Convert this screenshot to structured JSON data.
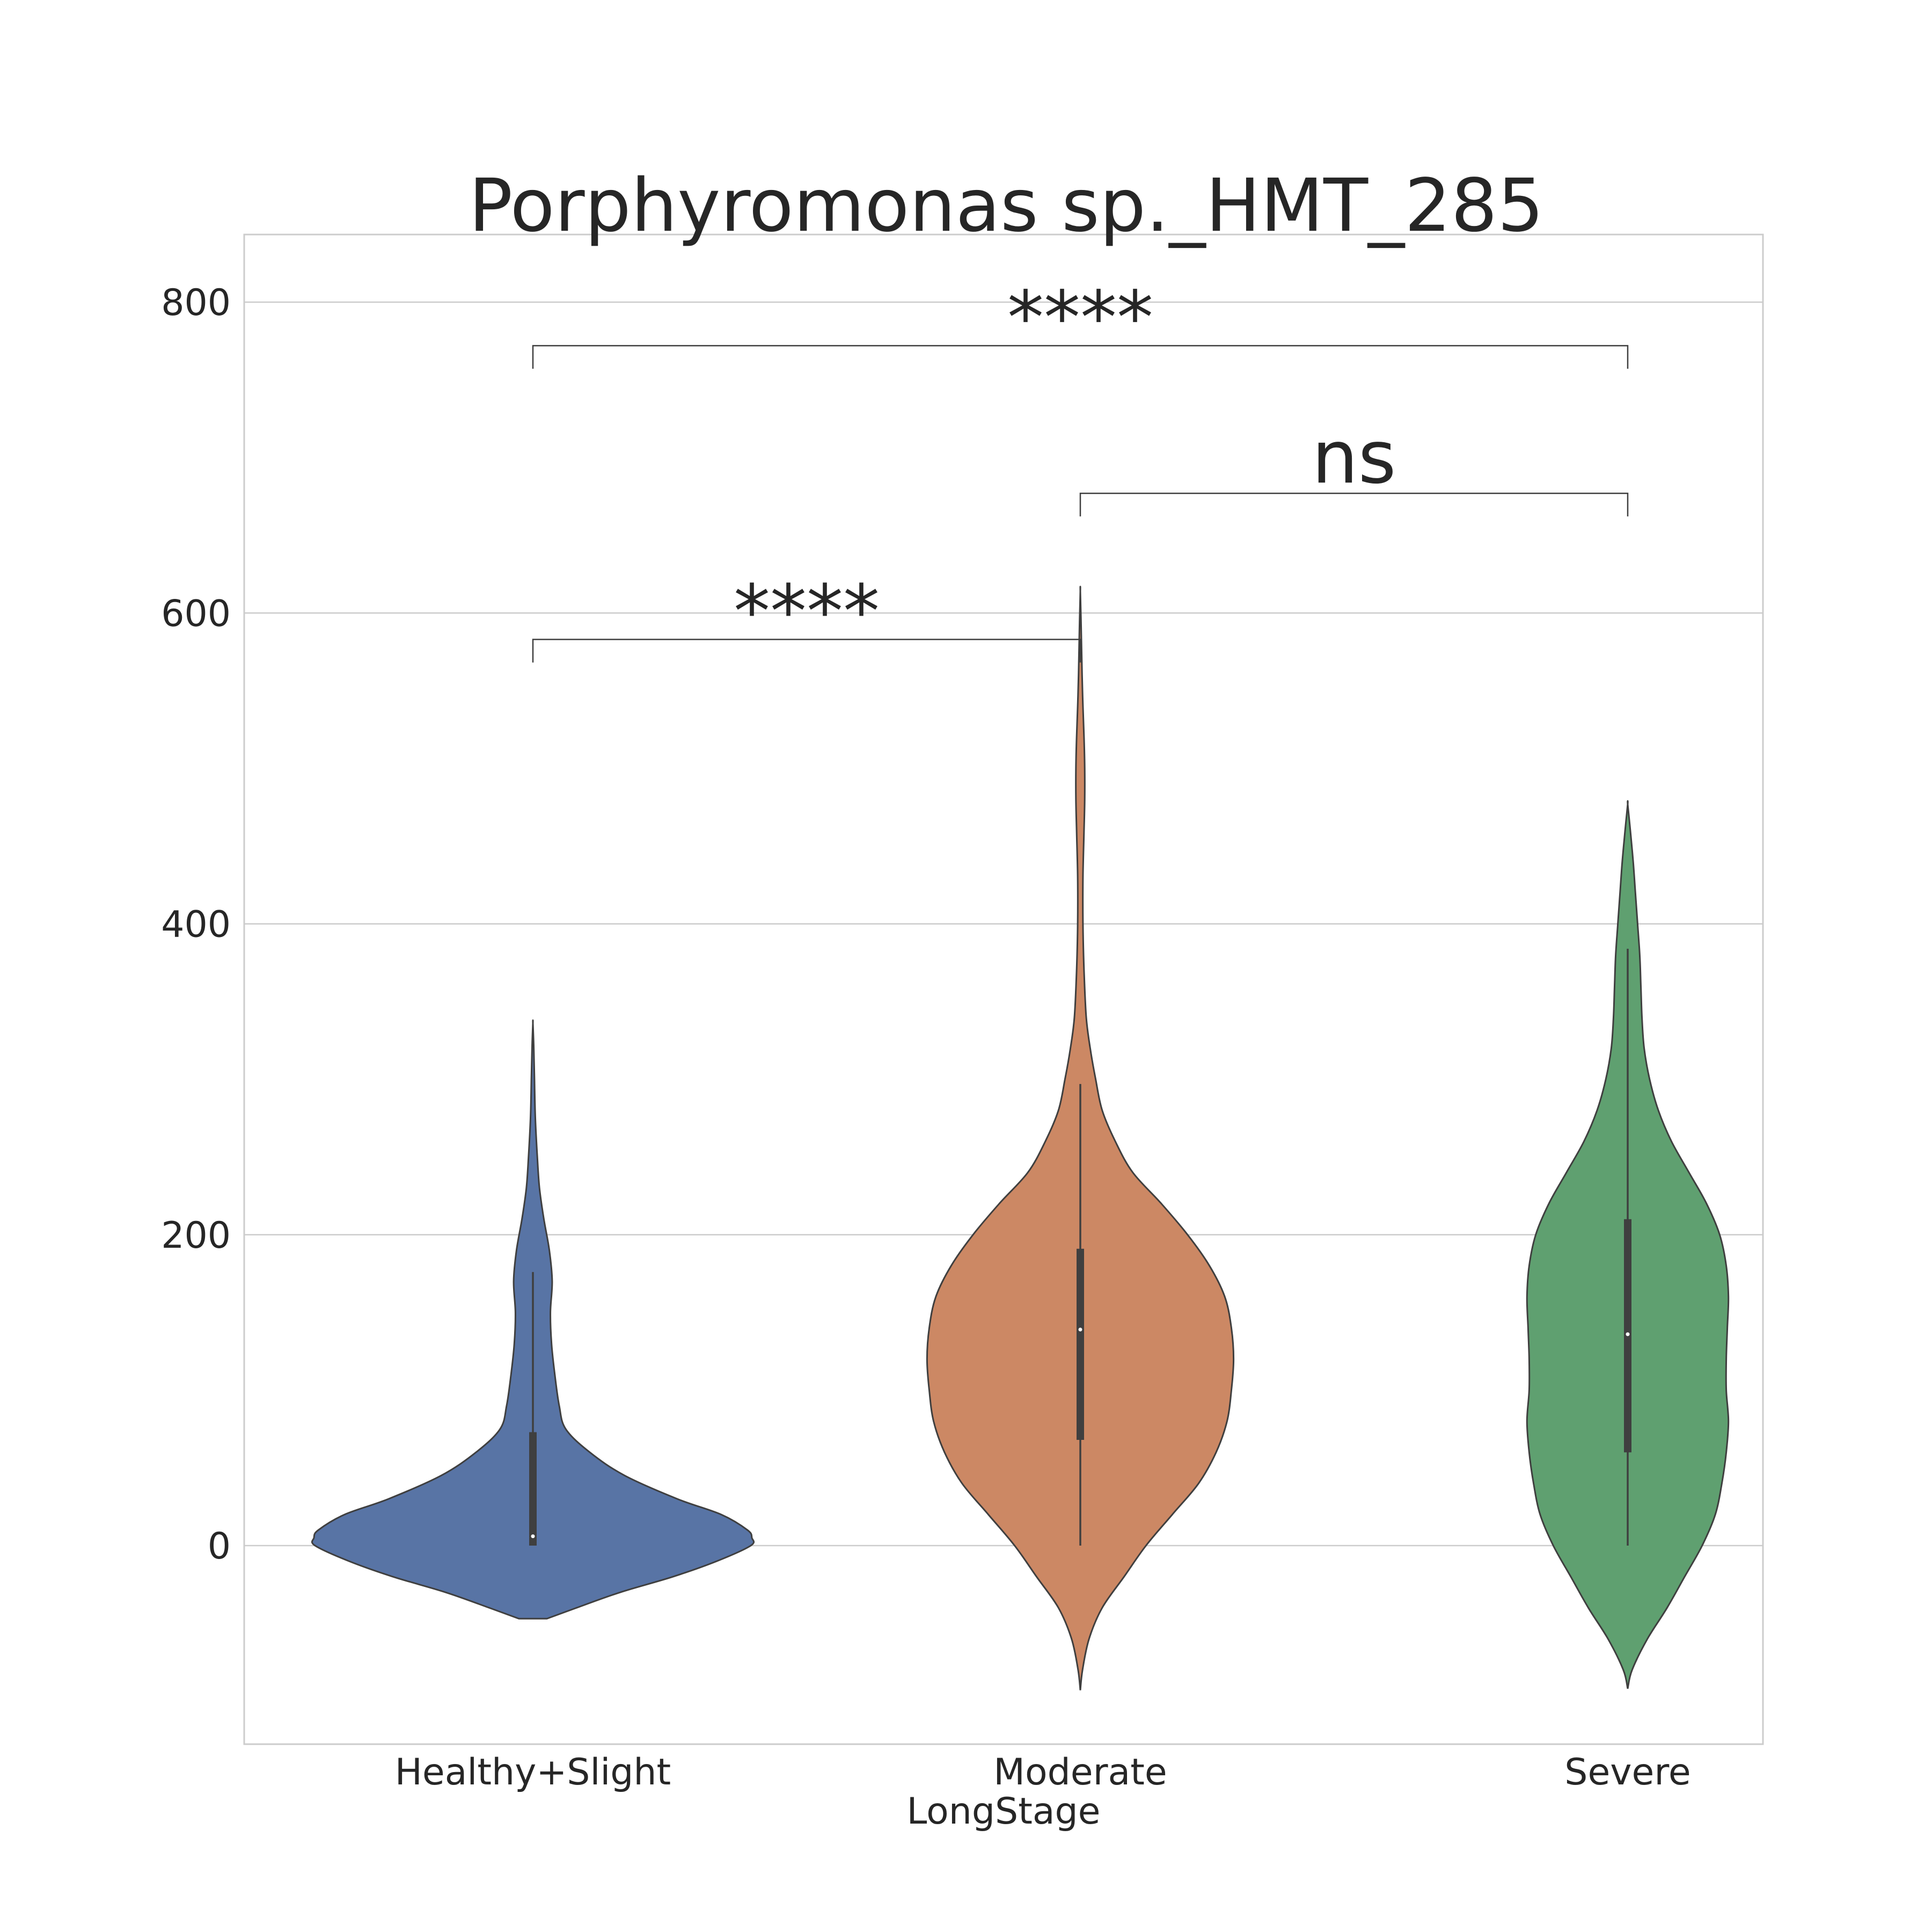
{
  "chart_data": {
    "type": "violin",
    "title": "Porphyromonas sp._HMT_285",
    "xlabel": "LongStage",
    "ylabel": "",
    "ylim": [
      -128,
      844
    ],
    "yticks": [
      0,
      200,
      400,
      600,
      800
    ],
    "ytick_labels": [
      "0",
      "200",
      "400",
      "600",
      "800"
    ],
    "grid": true,
    "categories": [
      "Healthy+Slight",
      "Moderate",
      "Severe"
    ],
    "colors": [
      "#5874a5",
      "#cc8864",
      "#5fa070"
    ],
    "violins": [
      {
        "category": "Healthy+Slight",
        "min": 0,
        "q1": 0,
        "median": 6,
        "q3": 73,
        "whisker_high": 176,
        "kde_low": -47,
        "kde_high": 336,
        "profile": [
          [
            -47,
            0.064
          ],
          [
            -40,
            0.2
          ],
          [
            -30,
            0.4
          ],
          [
            -20,
            0.64
          ],
          [
            -10,
            0.84
          ],
          [
            0,
            0.995
          ],
          [
            5,
            1.0
          ],
          [
            10,
            0.98
          ],
          [
            20,
            0.86
          ],
          [
            30,
            0.66
          ],
          [
            45,
            0.42
          ],
          [
            60,
            0.26
          ],
          [
            75,
            0.15
          ],
          [
            90,
            0.12
          ],
          [
            110,
            0.1
          ],
          [
            130,
            0.085
          ],
          [
            150,
            0.08
          ],
          [
            170,
            0.088
          ],
          [
            190,
            0.075
          ],
          [
            210,
            0.05
          ],
          [
            230,
            0.03
          ],
          [
            250,
            0.02
          ],
          [
            275,
            0.011
          ],
          [
            300,
            0.007
          ],
          [
            320,
            0.004
          ],
          [
            336,
            0.0
          ]
        ]
      },
      {
        "category": "Moderate",
        "min": 0,
        "q1": 68,
        "median": 139,
        "q3": 191,
        "whisker_high": 297,
        "kde_low": -93,
        "kde_high": 614,
        "profile": [
          [
            -93,
            0.0
          ],
          [
            -80,
            0.01
          ],
          [
            -60,
            0.04
          ],
          [
            -40,
            0.1
          ],
          [
            -20,
            0.2
          ],
          [
            0,
            0.3
          ],
          [
            20,
            0.42
          ],
          [
            40,
            0.54
          ],
          [
            60,
            0.62
          ],
          [
            80,
            0.67
          ],
          [
            100,
            0.69
          ],
          [
            120,
            0.7
          ],
          [
            140,
            0.69
          ],
          [
            160,
            0.66
          ],
          [
            180,
            0.59
          ],
          [
            200,
            0.49
          ],
          [
            220,
            0.37
          ],
          [
            240,
            0.24
          ],
          [
            260,
            0.16
          ],
          [
            280,
            0.1
          ],
          [
            300,
            0.07
          ],
          [
            320,
            0.045
          ],
          [
            340,
            0.027
          ],
          [
            370,
            0.017
          ],
          [
            400,
            0.012
          ],
          [
            430,
            0.012
          ],
          [
            460,
            0.017
          ],
          [
            480,
            0.02
          ],
          [
            500,
            0.02
          ],
          [
            520,
            0.017
          ],
          [
            540,
            0.012
          ],
          [
            560,
            0.008
          ],
          [
            590,
            0.004
          ],
          [
            614,
            0.0
          ]
        ]
      },
      {
        "category": "Severe",
        "min": 0,
        "q1": 60,
        "median": 136,
        "q3": 210,
        "whisker_high": 384,
        "kde_low": -92,
        "kde_high": 477,
        "profile": [
          [
            -92,
            0.0
          ],
          [
            -80,
            0.02
          ],
          [
            -60,
            0.09
          ],
          [
            -40,
            0.18
          ],
          [
            -20,
            0.26
          ],
          [
            0,
            0.34
          ],
          [
            20,
            0.4
          ],
          [
            40,
            0.43
          ],
          [
            60,
            0.45
          ],
          [
            80,
            0.46
          ],
          [
            100,
            0.45
          ],
          [
            120,
            0.45
          ],
          [
            140,
            0.455
          ],
          [
            160,
            0.46
          ],
          [
            180,
            0.45
          ],
          [
            200,
            0.42
          ],
          [
            220,
            0.36
          ],
          [
            240,
            0.28
          ],
          [
            260,
            0.2
          ],
          [
            280,
            0.14
          ],
          [
            300,
            0.1
          ],
          [
            320,
            0.075
          ],
          [
            340,
            0.065
          ],
          [
            360,
            0.06
          ],
          [
            380,
            0.055
          ],
          [
            400,
            0.045
          ],
          [
            420,
            0.035
          ],
          [
            440,
            0.025
          ],
          [
            460,
            0.012
          ],
          [
            477,
            0.0
          ]
        ]
      }
    ],
    "annotations": [
      {
        "from": "Healthy+Slight",
        "to": "Moderate",
        "label": "****",
        "y": 583
      },
      {
        "from": "Moderate",
        "to": "Severe",
        "label": "ns",
        "y": 677
      },
      {
        "from": "Healthy+Slight",
        "to": "Severe",
        "label": "****",
        "y": 772
      }
    ]
  }
}
